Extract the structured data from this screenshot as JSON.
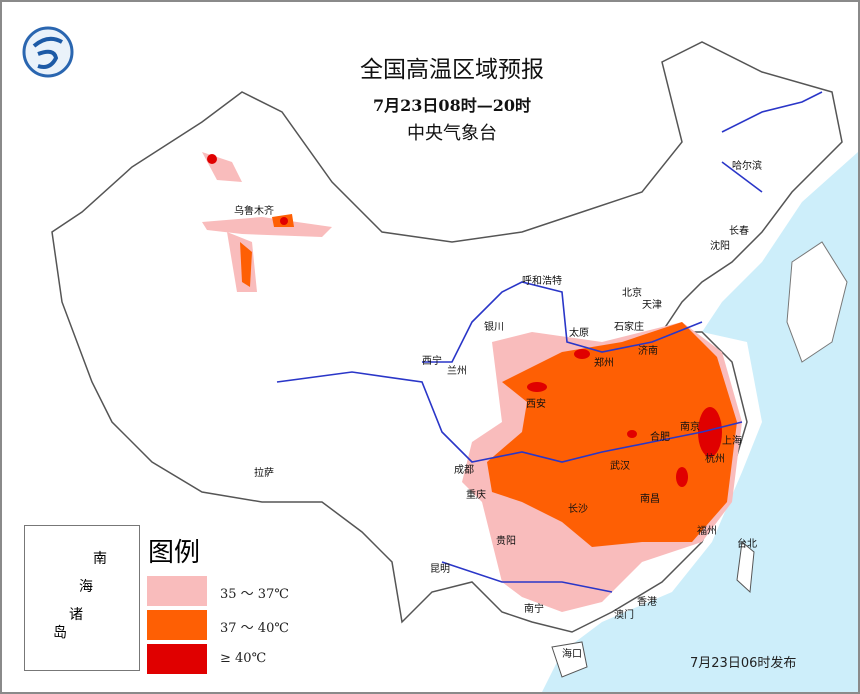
{
  "title": "全国高温区域预报",
  "subtitle": "7月23日08时—20时",
  "agency": "中央气象台",
  "legend": {
    "title": "图例",
    "items": [
      {
        "label": "35 ～ 37℃",
        "color": "#f9bcbc"
      },
      {
        "label": "37 ～ 40℃",
        "color": "#fe5f04"
      },
      {
        "label": "≥ 40℃",
        "color": "#e00000"
      }
    ]
  },
  "inset_label": [
    "南",
    "海",
    "诸",
    "岛"
  ],
  "issued": "7月23日06时发布",
  "cities": [
    "乌鲁木齐",
    "哈尔滨",
    "长春",
    "沈阳",
    "呼和浩特",
    "北京",
    "天津",
    "石家庄",
    "太原",
    "银川",
    "济南",
    "西宁",
    "兰州",
    "郑州",
    "西安",
    "合肥",
    "南京",
    "上海",
    "杭州",
    "武汉",
    "成都",
    "重庆",
    "长沙",
    "南昌",
    "福州",
    "贵阳",
    "昆明",
    "台北",
    "南宁",
    "香港",
    "澳门",
    "海口",
    "拉萨"
  ],
  "colors": {
    "sea": "#cdeefa",
    "border": "#555555",
    "river": "#2a36c8"
  }
}
